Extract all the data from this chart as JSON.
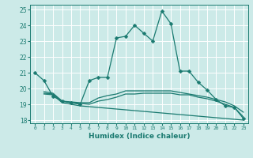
{
  "xlabel": "Humidex (Indice chaleur)",
  "bg_color": "#cceae8",
  "grid_color": "#ffffff",
  "line_color": "#1a7a70",
  "xlim": [
    -0.5,
    23.5
  ],
  "ylim": [
    17.8,
    25.3
  ],
  "yticks": [
    18,
    19,
    20,
    21,
    22,
    23,
    24,
    25
  ],
  "xticks": [
    0,
    1,
    2,
    3,
    4,
    5,
    6,
    7,
    8,
    9,
    10,
    11,
    12,
    13,
    14,
    15,
    16,
    17,
    18,
    19,
    20,
    21,
    22,
    23
  ],
  "line1_x": [
    0,
    1,
    2,
    3,
    4,
    5,
    6,
    7,
    8,
    9,
    10,
    11,
    12,
    13,
    14,
    15,
    16,
    17,
    18,
    19,
    20,
    21,
    22,
    23
  ],
  "line1_y": [
    21.0,
    20.5,
    19.5,
    19.2,
    19.1,
    19.0,
    20.5,
    20.7,
    20.7,
    23.2,
    23.3,
    24.0,
    23.5,
    23.0,
    24.9,
    24.1,
    21.1,
    21.1,
    20.4,
    19.9,
    19.3,
    18.9,
    18.8,
    18.1
  ],
  "line2_x": [
    1,
    2,
    3,
    4,
    5,
    6,
    7,
    8,
    9,
    10,
    11,
    12,
    13,
    14,
    15,
    16,
    17,
    18,
    19,
    20,
    21,
    22,
    23
  ],
  "line2_y": [
    19.8,
    19.7,
    19.2,
    19.15,
    19.1,
    19.1,
    19.4,
    19.55,
    19.65,
    19.85,
    19.85,
    19.85,
    19.85,
    19.85,
    19.85,
    19.75,
    19.65,
    19.55,
    19.45,
    19.3,
    19.15,
    18.9,
    18.5
  ],
  "line3_x": [
    1,
    2,
    3,
    4,
    5,
    6,
    7,
    8,
    9,
    10,
    11,
    12,
    13,
    14,
    15,
    16,
    17,
    18,
    19,
    20,
    21,
    22,
    23
  ],
  "line3_y": [
    19.7,
    19.65,
    19.2,
    19.1,
    19.05,
    19.0,
    19.2,
    19.3,
    19.45,
    19.65,
    19.65,
    19.7,
    19.7,
    19.7,
    19.7,
    19.6,
    19.6,
    19.45,
    19.35,
    19.2,
    19.0,
    18.8,
    18.2
  ],
  "line4_x": [
    1,
    2,
    3,
    4,
    5,
    6,
    7,
    8,
    9,
    10,
    11,
    12,
    13,
    14,
    15,
    16,
    17,
    18,
    19,
    20,
    21,
    22,
    23
  ],
  "line4_y": [
    19.65,
    19.6,
    19.1,
    19.0,
    18.9,
    18.85,
    18.8,
    18.75,
    18.7,
    18.65,
    18.6,
    18.55,
    18.5,
    18.45,
    18.4,
    18.35,
    18.3,
    18.25,
    18.2,
    18.15,
    18.1,
    18.05,
    18.0
  ]
}
